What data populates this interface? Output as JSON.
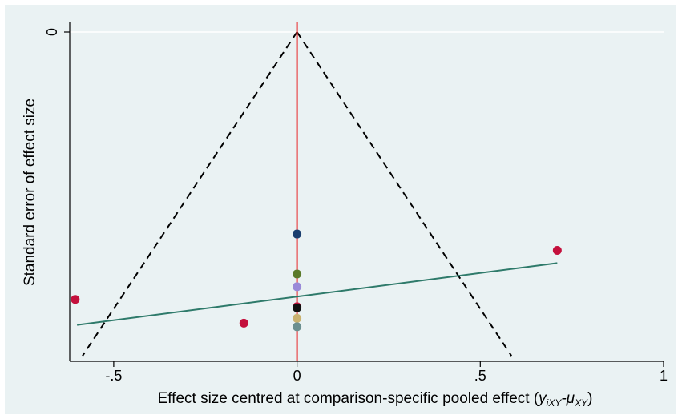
{
  "chart_data": {
    "type": "scatter",
    "title": "",
    "xlabel": "Effect size centred at comparison-specific pooled effect (",
    "xlabel_math": "y",
    "xlabel_sub1": "iXY",
    "xlabel_mid": "-μ",
    "xlabel_sub2": "XY",
    "xlabel_end": ")",
    "ylabel": "Standard error of effect size",
    "xlim": [
      -0.62,
      1.0
    ],
    "ylim_reversed": [
      0,
      0.905
    ],
    "x_ticks": [
      {
        "value": -0.5,
        "label": "-.5"
      },
      {
        "value": 0,
        "label": "0"
      },
      {
        "value": 0.5,
        "label": ".5"
      },
      {
        "value": 1,
        "label": "1"
      }
    ],
    "y_ticks": [
      {
        "value": 0,
        "label": "0"
      }
    ],
    "funnel": {
      "apex": [
        0,
        0
      ],
      "left_end": [
        -0.585,
        0.89
      ],
      "right_end": [
        0.585,
        0.89
      ],
      "color": "#000000"
    },
    "reference_line": {
      "x": 0,
      "color": "#e8282a"
    },
    "regression_line": {
      "points": [
        [
          -0.6,
          0.805
        ],
        [
          0.71,
          0.635
        ]
      ],
      "color": "#2e7a6a"
    },
    "points": [
      {
        "x": -0.605,
        "y": 0.735,
        "color": "#c4103c"
      },
      {
        "x": -0.145,
        "y": 0.8,
        "color": "#c4103c"
      },
      {
        "x": 0.0,
        "y": 0.555,
        "color": "#1a3e6e"
      },
      {
        "x": 0.0,
        "y": 0.665,
        "color": "#5a7a2a"
      },
      {
        "x": 0.0,
        "y": 0.7,
        "color": "#9a8ad8"
      },
      {
        "x": 0.0,
        "y": 0.755,
        "color": "#c4103c"
      },
      {
        "x": 0.0,
        "y": 0.758,
        "color": "#111111"
      },
      {
        "x": 0.0,
        "y": 0.787,
        "color": "#c9b270"
      },
      {
        "x": 0.0,
        "y": 0.81,
        "color": "#6b8f8f"
      },
      {
        "x": 0.71,
        "y": 0.6,
        "color": "#c4103c"
      }
    ]
  }
}
